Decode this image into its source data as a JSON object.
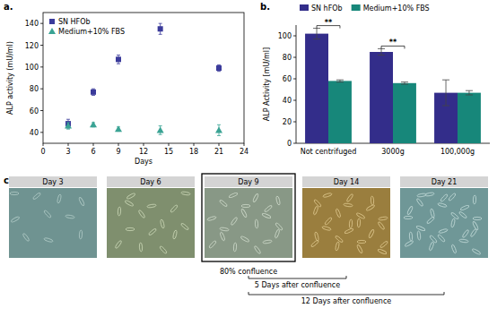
{
  "panel_labels": [
    "a.",
    "b.",
    "c."
  ],
  "chart_data": [
    {
      "type": "scatter",
      "x_label": "Days",
      "y_label": "ALP activity (mU/ml)",
      "x": [
        3,
        6,
        9,
        14,
        21
      ],
      "xlim": [
        0,
        24
      ],
      "xticks": [
        0,
        3,
        6,
        9,
        12,
        15,
        18,
        21,
        24
      ],
      "ylim": [
        30,
        150
      ],
      "yticks": [
        40,
        60,
        80,
        100,
        120,
        140
      ],
      "legend": "upper left",
      "series": [
        {
          "name": "SN HFOb",
          "color": "#3b3b9b",
          "marker": "square",
          "values": [
            48,
            77,
            107,
            135,
            99
          ],
          "errors": [
            4,
            3,
            4,
            5,
            3
          ]
        },
        {
          "name": "Medium+10% FBS",
          "color": "#3aa394",
          "marker": "triangle",
          "values": [
            46,
            47,
            43,
            42,
            42
          ],
          "errors": [
            3,
            2,
            2,
            4,
            5
          ]
        }
      ]
    },
    {
      "type": "bar",
      "y_label": "ALP Activity [mU/ml]",
      "categories": [
        "Not centrifuged",
        "3000g",
        "100,000g"
      ],
      "ylim": [
        0,
        110
      ],
      "yticks": [
        0,
        20,
        40,
        60,
        80,
        100
      ],
      "legend": "top",
      "series": [
        {
          "name": "SN hFOb",
          "color": "#332d8a",
          "values": [
            102,
            85,
            47
          ],
          "errors": [
            5,
            3,
            12
          ]
        },
        {
          "name": "Medium+10% FBS",
          "color": "#17877a",
          "values": [
            58,
            56,
            47
          ],
          "errors": [
            1,
            1,
            2
          ]
        }
      ],
      "annotations": [
        {
          "text": "**",
          "category": "Not centrifuged"
        },
        {
          "text": "**",
          "category": "3000g"
        }
      ]
    }
  ],
  "images": {
    "headers": [
      "Day 3",
      "Day 6",
      "Day 9",
      "Day 14",
      "Day 21"
    ],
    "highlighted": "Day 9",
    "caption": "80% confluence",
    "spans": [
      {
        "text": "5 Days after confluence",
        "start": "Day 9",
        "end": "Day 14"
      },
      {
        "text": "12 Days after confluence",
        "start": "Day 9",
        "end": "Day 21"
      }
    ]
  }
}
